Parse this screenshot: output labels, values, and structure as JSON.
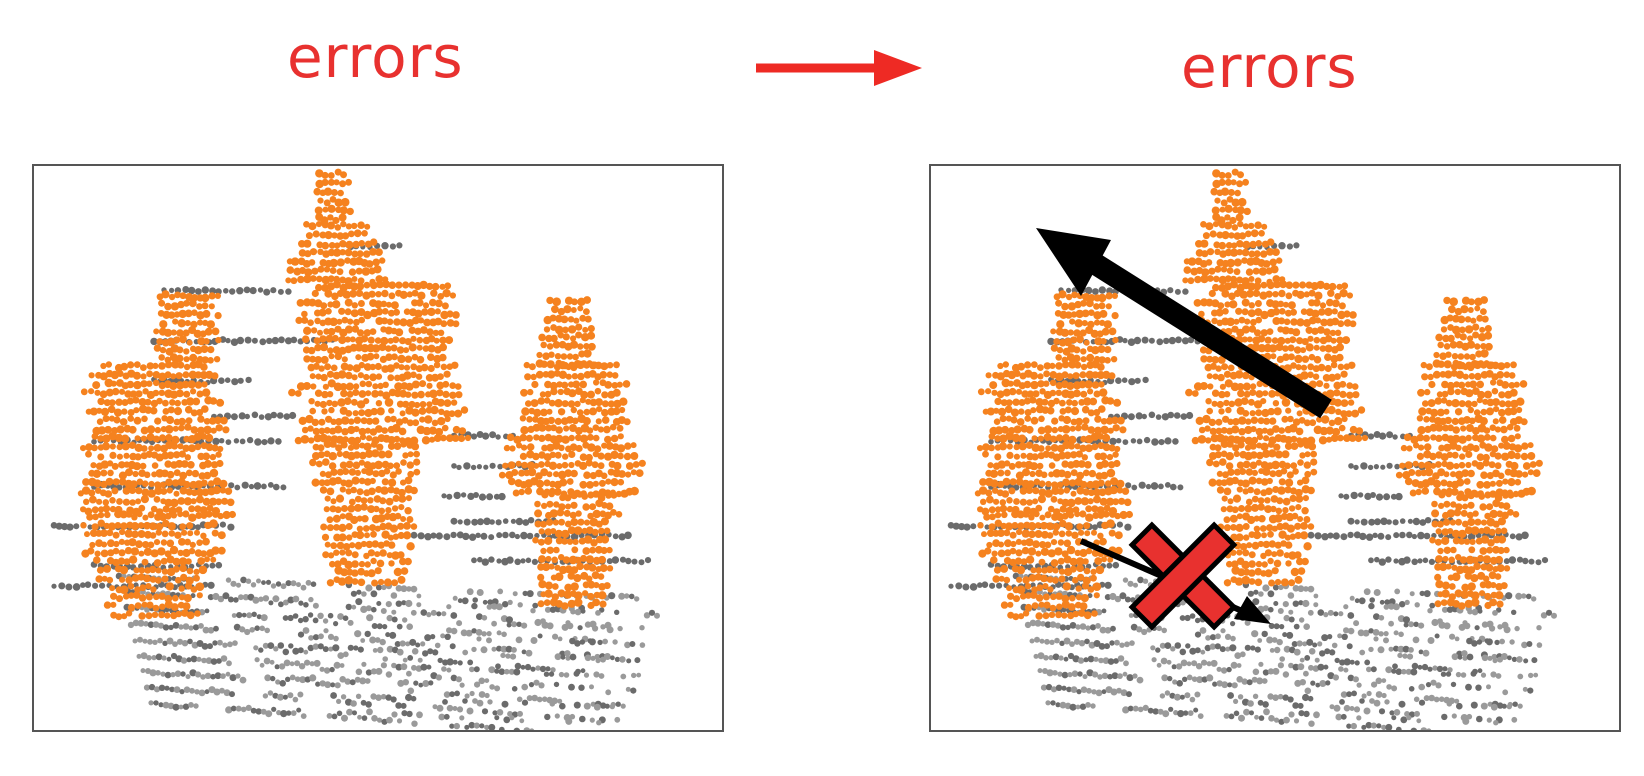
{
  "left_panel": {
    "label": "errors"
  },
  "right_panel": {
    "label": "errors"
  },
  "colors": {
    "label": "#e8312f",
    "arrow": "#ee2a24",
    "points_foreground": "#f5821f",
    "points_background": "#6b6b6b",
    "points_ground": "#9a9a9a",
    "cross_fill": "#e8312f",
    "overlay_arrow": "#000000"
  }
}
